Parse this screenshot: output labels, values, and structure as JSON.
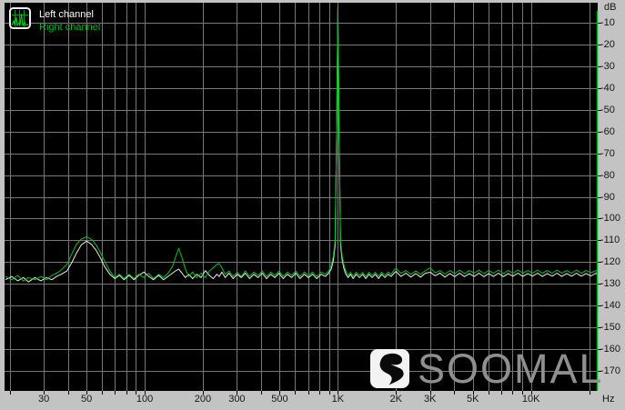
{
  "window": {
    "background_color": "#c3c3c3",
    "plot_background_color": "#000000"
  },
  "legend": {
    "icon": "mini-spectrum-icon",
    "items": [
      {
        "label": "Left channel",
        "color": "#ffffff"
      },
      {
        "label": "Right channel",
        "color": "#00b41e"
      }
    ]
  },
  "watermark": {
    "brand": "SOOMAL",
    "logo": "s-swoosh-icon",
    "text_color": "#8f8f8f",
    "box_color": "#f3f3f3"
  },
  "chart_data": {
    "type": "line",
    "title": "",
    "legend_position": "top-left",
    "grid": true,
    "grid_color": "#787878",
    "plot_bg": "#000000",
    "x_axis": {
      "scale": "log",
      "unit": "Hz",
      "min": 18.8,
      "max": 22150,
      "gridlines": [
        20,
        30,
        40,
        50,
        60,
        70,
        80,
        90,
        100,
        200,
        300,
        400,
        500,
        600,
        700,
        800,
        900,
        1000,
        2000,
        3000,
        4000,
        5000,
        6000,
        7000,
        8000,
        9000,
        10000,
        20000
      ],
      "ticks": [
        {
          "value": 30,
          "label": "30"
        },
        {
          "value": 50,
          "label": "50"
        },
        {
          "value": 100,
          "label": "100"
        },
        {
          "value": 200,
          "label": "200"
        },
        {
          "value": 300,
          "label": "300"
        },
        {
          "value": 500,
          "label": "500"
        },
        {
          "value": 1000,
          "label": "1K"
        },
        {
          "value": 2000,
          "label": "2K"
        },
        {
          "value": 3000,
          "label": "3K"
        },
        {
          "value": 5000,
          "label": "5K"
        },
        {
          "value": 10000,
          "label": "10K"
        }
      ]
    },
    "y_axis": {
      "unit": "dB",
      "top": -1,
      "bottom": -179,
      "ticks": [
        -10,
        -20,
        -30,
        -40,
        -50,
        -60,
        -70,
        -80,
        -90,
        -100,
        -110,
        -120,
        -130,
        -140,
        -150,
        -160,
        -170
      ]
    },
    "right_edge_line_color": "#00b41e",
    "series": [
      {
        "name": "Left channel",
        "color": "#ebebeb",
        "points": [
          [
            19,
            -128
          ],
          [
            20.5,
            -126.5
          ],
          [
            22,
            -128.5
          ],
          [
            23.5,
            -127
          ],
          [
            25,
            -129
          ],
          [
            27,
            -127
          ],
          [
            29,
            -128.5
          ],
          [
            31,
            -127
          ],
          [
            33,
            -128
          ],
          [
            35,
            -126.5
          ],
          [
            37,
            -125.5
          ],
          [
            39.5,
            -124
          ],
          [
            42,
            -120
          ],
          [
            44.5,
            -115.5
          ],
          [
            47,
            -112
          ],
          [
            50,
            -110.3
          ],
          [
            53,
            -111.8
          ],
          [
            56,
            -114.5
          ],
          [
            59,
            -118
          ],
          [
            62,
            -122
          ],
          [
            66,
            -125.5
          ],
          [
            70,
            -127.5
          ],
          [
            74,
            -126
          ],
          [
            78,
            -128
          ],
          [
            83,
            -126
          ],
          [
            88,
            -128
          ],
          [
            93,
            -126
          ],
          [
            99,
            -124.5
          ],
          [
            105,
            -126.5
          ],
          [
            111,
            -128
          ],
          [
            118,
            -126
          ],
          [
            125,
            -128
          ],
          [
            132,
            -126.5
          ],
          [
            139,
            -125
          ],
          [
            144,
            -124
          ],
          [
            150,
            -123.2
          ],
          [
            156,
            -125
          ],
          [
            162,
            -127
          ],
          [
            169,
            -125.5
          ],
          [
            177,
            -127.5
          ],
          [
            186,
            -125.5
          ],
          [
            196,
            -127
          ],
          [
            206,
            -123.8
          ],
          [
            216,
            -126
          ],
          [
            226,
            -127.5
          ],
          [
            236,
            -125.5
          ],
          [
            243,
            -126.5
          ],
          [
            251,
            -124.5
          ],
          [
            261,
            -127
          ],
          [
            273,
            -125
          ],
          [
            287,
            -127.5
          ],
          [
            301,
            -125.5
          ],
          [
            316,
            -127
          ],
          [
            332,
            -125
          ],
          [
            349,
            -127.5
          ],
          [
            367,
            -125.5
          ],
          [
            386,
            -127
          ],
          [
            406,
            -125
          ],
          [
            427,
            -127.5
          ],
          [
            449,
            -125.5
          ],
          [
            472,
            -127
          ],
          [
            496,
            -125
          ],
          [
            521,
            -127.5
          ],
          [
            548,
            -125.5
          ],
          [
            576,
            -127
          ],
          [
            606,
            -125
          ],
          [
            637,
            -127.5
          ],
          [
            670,
            -125.5
          ],
          [
            704,
            -127
          ],
          [
            740,
            -125.5
          ],
          [
            778,
            -127.5
          ],
          [
            818,
            -125.5
          ],
          [
            860,
            -126.5
          ],
          [
            896,
            -125
          ],
          [
            925,
            -123
          ],
          [
            948,
            -119
          ],
          [
            968,
            -112
          ],
          [
            985,
            -62
          ],
          [
            1000,
            -3.2
          ],
          [
            1015,
            -62
          ],
          [
            1032,
            -112
          ],
          [
            1052,
            -119
          ],
          [
            1075,
            -123
          ],
          [
            1100,
            -125.5
          ],
          [
            1130,
            -127
          ],
          [
            1163,
            -125.5
          ],
          [
            1200,
            -127.5
          ],
          [
            1245,
            -125.5
          ],
          [
            1293,
            -127
          ],
          [
            1343,
            -125.5
          ],
          [
            1395,
            -127.5
          ],
          [
            1449,
            -125.5
          ],
          [
            1505,
            -127
          ],
          [
            1563,
            -125.5
          ],
          [
            1624,
            -127.5
          ],
          [
            1687,
            -125.5
          ],
          [
            1752,
            -127
          ],
          [
            1820,
            -125.5
          ],
          [
            1890,
            -126.5
          ],
          [
            1955,
            -125
          ],
          [
            2000,
            -124.2
          ],
          [
            2120,
            -126.5
          ],
          [
            2250,
            -125
          ],
          [
            2390,
            -126.8
          ],
          [
            2530,
            -125.2
          ],
          [
            2680,
            -126.8
          ],
          [
            2840,
            -125
          ],
          [
            3010,
            -124.6
          ],
          [
            3190,
            -126.2
          ],
          [
            3380,
            -125
          ],
          [
            3580,
            -126.8
          ],
          [
            3800,
            -125.2
          ],
          [
            4030,
            -126.6
          ],
          [
            4270,
            -125
          ],
          [
            4520,
            -126.6
          ],
          [
            4790,
            -125.2
          ],
          [
            5080,
            -126.5
          ],
          [
            5380,
            -125
          ],
          [
            5700,
            -126.6
          ],
          [
            6040,
            -125.2
          ],
          [
            6400,
            -126.5
          ],
          [
            6790,
            -125
          ],
          [
            7190,
            -126.6
          ],
          [
            7620,
            -125.2
          ],
          [
            8080,
            -126.4
          ],
          [
            8560,
            -125
          ],
          [
            9070,
            -126.5
          ],
          [
            9620,
            -125.2
          ],
          [
            10190,
            -126.4
          ],
          [
            10800,
            -125
          ],
          [
            11450,
            -126.5
          ],
          [
            12130,
            -125.2
          ],
          [
            12860,
            -126.4
          ],
          [
            13630,
            -125
          ],
          [
            14440,
            -126.5
          ],
          [
            15310,
            -125.2
          ],
          [
            16220,
            -126.4
          ],
          [
            17190,
            -125
          ],
          [
            18220,
            -126.4
          ],
          [
            19310,
            -125.2
          ],
          [
            20470,
            -126.3
          ],
          [
            21700,
            -125
          ],
          [
            22100,
            -125.8
          ]
        ]
      },
      {
        "name": "Right channel",
        "color": "#00c41e",
        "points": [
          [
            19,
            -126.5
          ],
          [
            20.5,
            -128
          ],
          [
            22,
            -126
          ],
          [
            23.5,
            -128.5
          ],
          [
            25,
            -127
          ],
          [
            27,
            -128
          ],
          [
            29,
            -126.5
          ],
          [
            31,
            -128
          ],
          [
            33,
            -126
          ],
          [
            35,
            -125
          ],
          [
            37,
            -123.5
          ],
          [
            39.5,
            -121
          ],
          [
            42,
            -116
          ],
          [
            44.5,
            -111.5
          ],
          [
            47,
            -109.3
          ],
          [
            50,
            -108.4
          ],
          [
            53,
            -109.5
          ],
          [
            56,
            -112
          ],
          [
            59,
            -115.5
          ],
          [
            62,
            -119.5
          ],
          [
            66,
            -124
          ],
          [
            70,
            -127
          ],
          [
            74,
            -125.5
          ],
          [
            78,
            -127.5
          ],
          [
            83,
            -125.5
          ],
          [
            88,
            -127.5
          ],
          [
            93,
            -125.5
          ],
          [
            99,
            -127
          ],
          [
            105,
            -125
          ],
          [
            111,
            -127.5
          ],
          [
            118,
            -125.5
          ],
          [
            125,
            -127
          ],
          [
            132,
            -125
          ],
          [
            139,
            -122
          ],
          [
            144,
            -118
          ],
          [
            150,
            -113.6
          ],
          [
            156,
            -118
          ],
          [
            162,
            -123
          ],
          [
            169,
            -126.5
          ],
          [
            177,
            -124.5
          ],
          [
            186,
            -127
          ],
          [
            196,
            -125
          ],
          [
            206,
            -127
          ],
          [
            216,
            -124
          ],
          [
            226,
            -122.5
          ],
          [
            236,
            -121
          ],
          [
            243,
            -120.6
          ],
          [
            251,
            -122.5
          ],
          [
            261,
            -125.5
          ],
          [
            273,
            -124
          ],
          [
            287,
            -126.5
          ],
          [
            301,
            -124.5
          ],
          [
            316,
            -126.5
          ],
          [
            332,
            -124
          ],
          [
            349,
            -126.5
          ],
          [
            367,
            -124.5
          ],
          [
            386,
            -126
          ],
          [
            406,
            -124
          ],
          [
            427,
            -126.5
          ],
          [
            449,
            -124.5
          ],
          [
            472,
            -126
          ],
          [
            496,
            -124
          ],
          [
            521,
            -126.5
          ],
          [
            548,
            -124.5
          ],
          [
            576,
            -126
          ],
          [
            606,
            -124
          ],
          [
            637,
            -126.5
          ],
          [
            670,
            -124.5
          ],
          [
            704,
            -126
          ],
          [
            740,
            -124.5
          ],
          [
            778,
            -126.5
          ],
          [
            818,
            -124.5
          ],
          [
            860,
            -125.5
          ],
          [
            896,
            -124
          ],
          [
            925,
            -121.5
          ],
          [
            948,
            -117
          ],
          [
            968,
            -110
          ],
          [
            985,
            -60
          ],
          [
            1000,
            -2.9
          ],
          [
            1015,
            -60
          ],
          [
            1032,
            -110
          ],
          [
            1052,
            -117
          ],
          [
            1075,
            -121.5
          ],
          [
            1100,
            -124
          ],
          [
            1130,
            -126
          ],
          [
            1163,
            -124.5
          ],
          [
            1200,
            -126.5
          ],
          [
            1245,
            -124.5
          ],
          [
            1293,
            -126
          ],
          [
            1343,
            -124.5
          ],
          [
            1395,
            -126.5
          ],
          [
            1449,
            -124.5
          ],
          [
            1505,
            -126
          ],
          [
            1563,
            -124.5
          ],
          [
            1624,
            -126.5
          ],
          [
            1687,
            -124.5
          ],
          [
            1752,
            -126
          ],
          [
            1820,
            -124.5
          ],
          [
            1890,
            -125.5
          ],
          [
            1955,
            -123.5
          ],
          [
            2000,
            -122.8
          ],
          [
            2120,
            -125
          ],
          [
            2250,
            -123.8
          ],
          [
            2390,
            -125.5
          ],
          [
            2530,
            -124
          ],
          [
            2680,
            -125.5
          ],
          [
            2840,
            -123.8
          ],
          [
            3010,
            -122.6
          ],
          [
            3190,
            -124.8
          ],
          [
            3380,
            -123.8
          ],
          [
            3580,
            -125.4
          ],
          [
            3800,
            -123.8
          ],
          [
            4030,
            -125.2
          ],
          [
            4270,
            -123.6
          ],
          [
            4520,
            -125.2
          ],
          [
            4790,
            -123.8
          ],
          [
            5080,
            -125
          ],
          [
            5380,
            -123.6
          ],
          [
            5700,
            -125.2
          ],
          [
            6040,
            -123.8
          ],
          [
            6400,
            -125
          ],
          [
            6790,
            -123.6
          ],
          [
            7190,
            -125.2
          ],
          [
            7620,
            -123.8
          ],
          [
            8080,
            -125
          ],
          [
            8560,
            -123.6
          ],
          [
            9070,
            -125
          ],
          [
            9620,
            -123.8
          ],
          [
            10190,
            -125
          ],
          [
            10800,
            -123.6
          ],
          [
            11450,
            -125
          ],
          [
            12130,
            -123.8
          ],
          [
            12860,
            -125
          ],
          [
            13630,
            -123.6
          ],
          [
            14440,
            -125
          ],
          [
            15310,
            -123.8
          ],
          [
            16220,
            -125
          ],
          [
            17190,
            -123.6
          ],
          [
            18220,
            -125
          ],
          [
            19310,
            -123.8
          ],
          [
            20470,
            -124.8
          ],
          [
            21700,
            -123.8
          ],
          [
            22100,
            -124.4
          ]
        ]
      }
    ]
  }
}
